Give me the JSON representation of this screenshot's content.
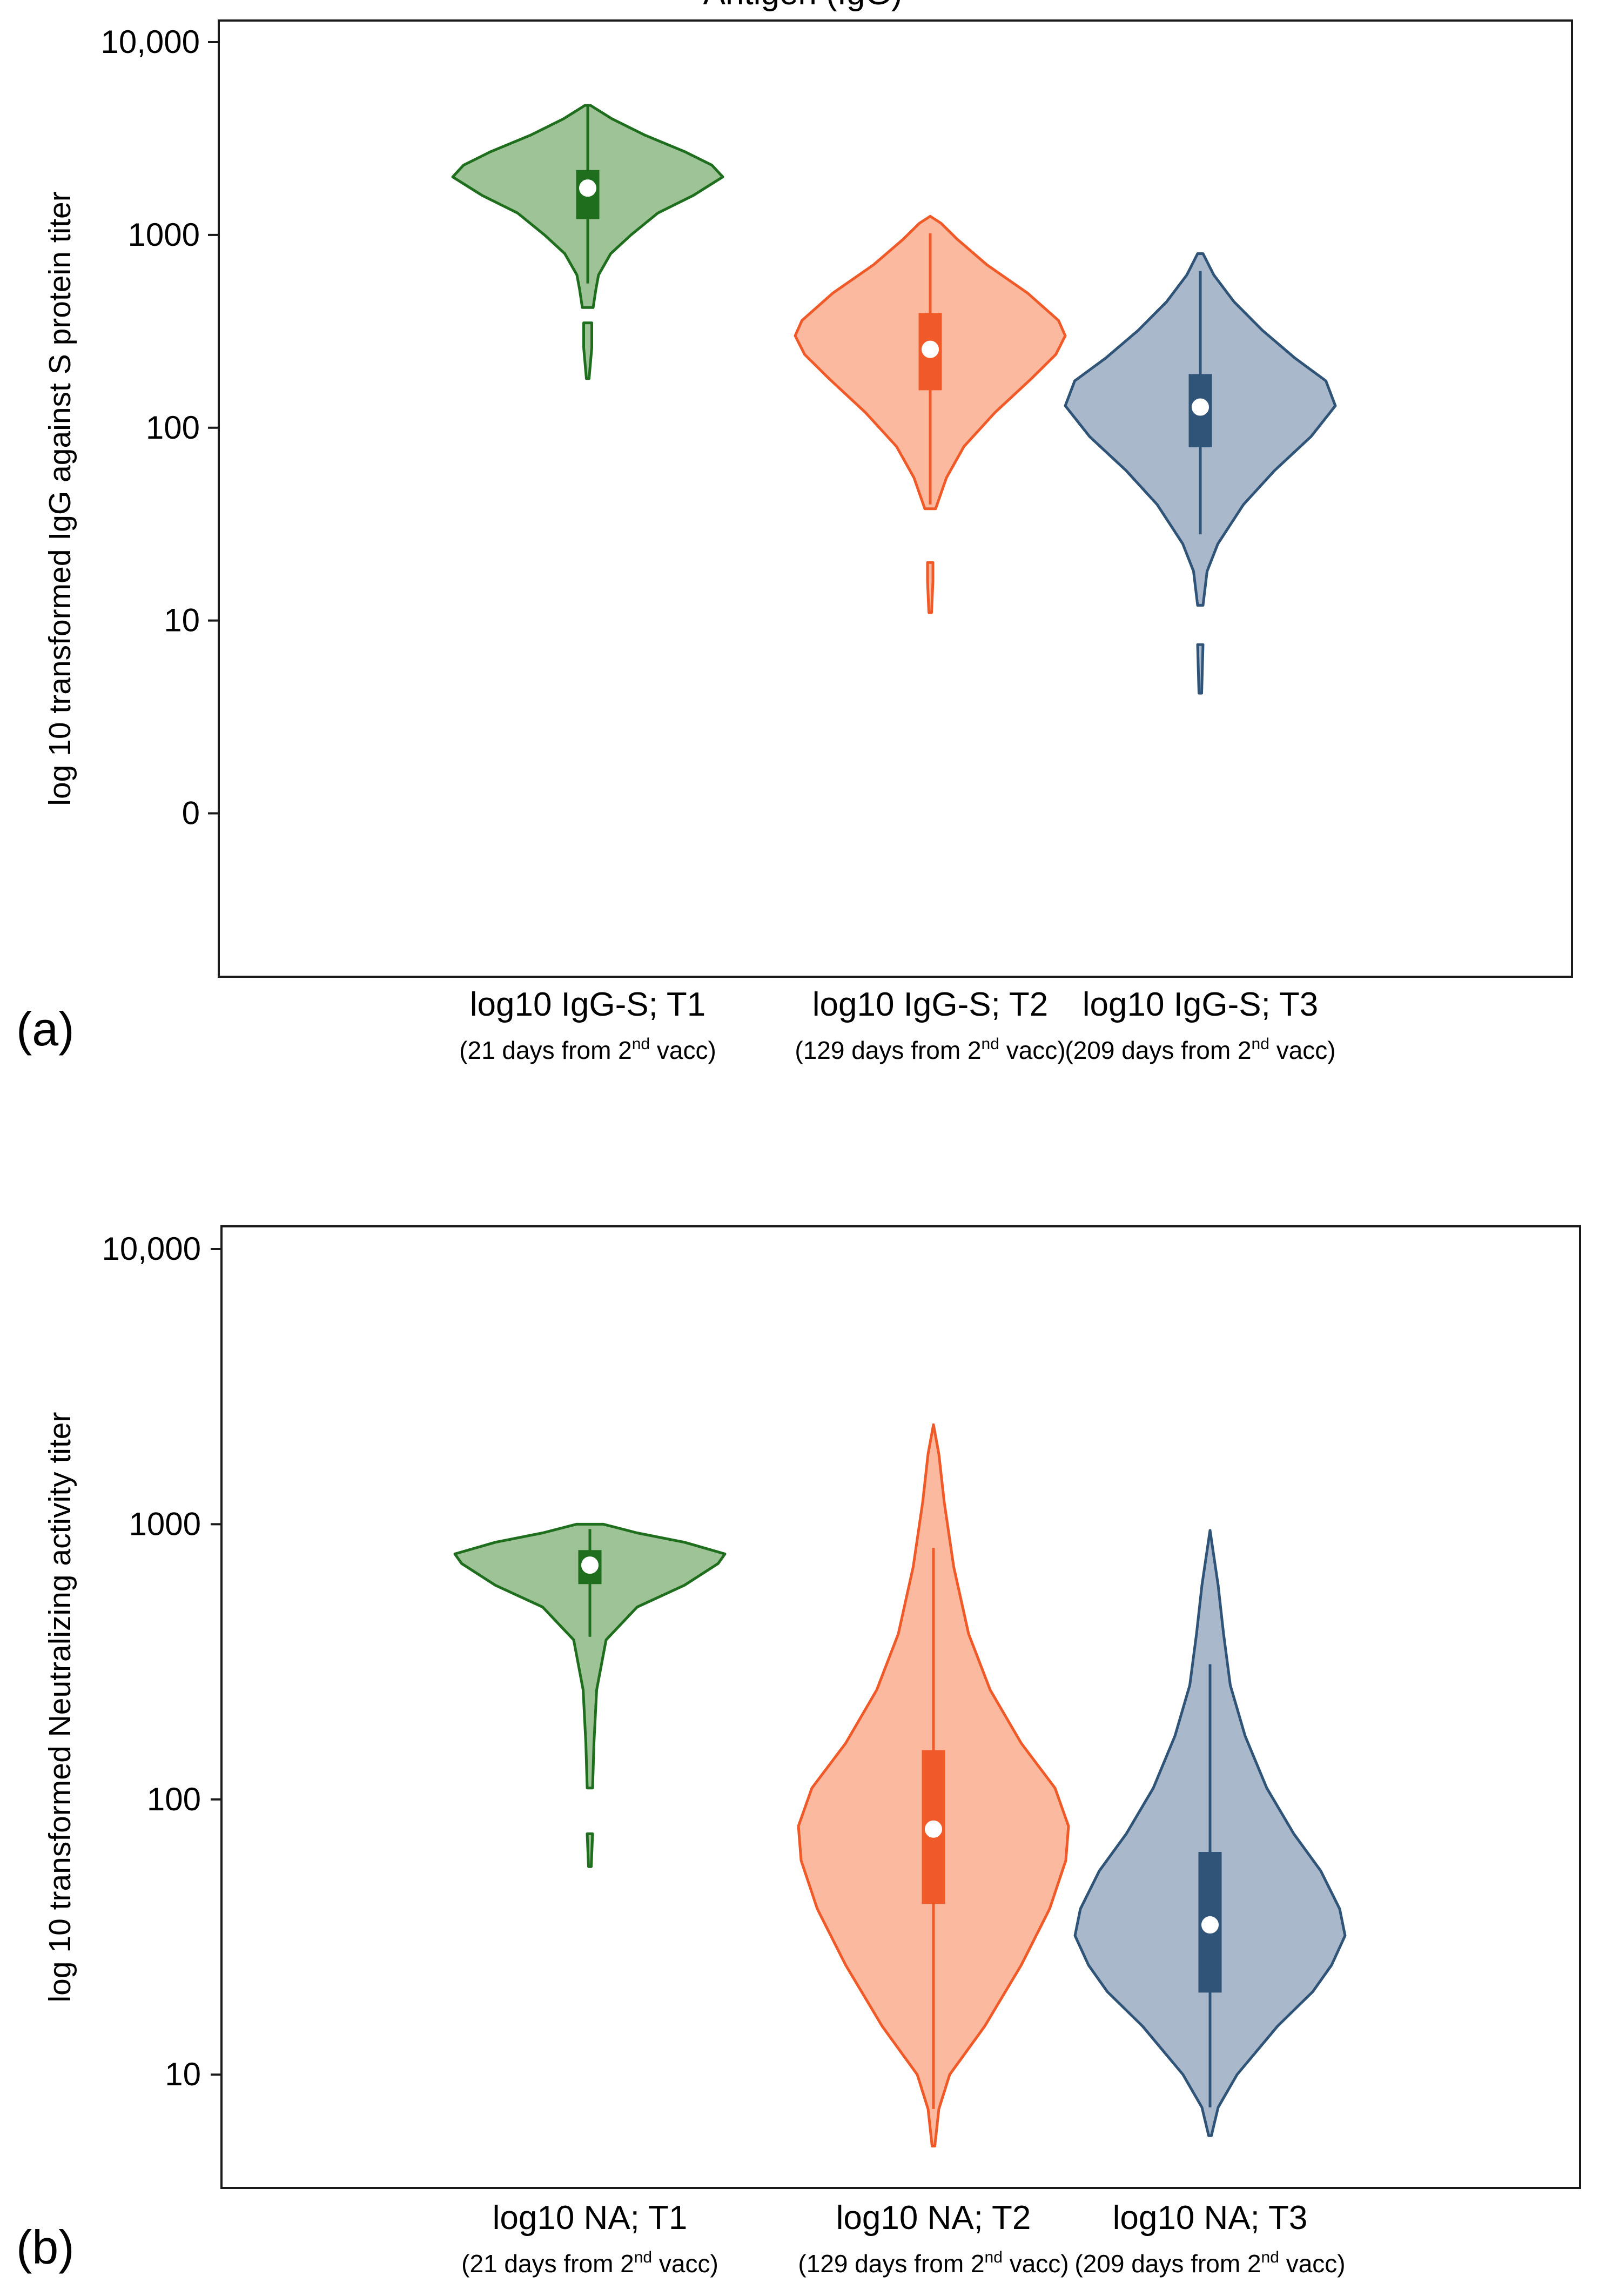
{
  "figure": {
    "top_title": "Antigen (IgG)",
    "panels": [
      {
        "label": "(a)",
        "chart_data": {
          "type": "violin",
          "ylabel": "log 10 transformed IgG against S protein titer",
          "yscale": "log",
          "ylim": [
            0.2,
            10000
          ],
          "yticks": [
            {
              "value": 10000,
              "label": "10,000"
            },
            {
              "value": 1000,
              "label": "1000"
            },
            {
              "value": 100,
              "label": "100"
            },
            {
              "value": 10,
              "label": "10"
            },
            {
              "value": 1,
              "label": "0"
            }
          ],
          "series": [
            {
              "name": "log10 IgG-S; T1",
              "sub_label": "(21 days from 2nd vacc)",
              "fill_color": "#9dc396",
              "stroke_color": "#1e6e1e",
              "box_color": "#1e6e1e",
              "median": 1750,
              "q1": 1220,
              "q3": 2150,
              "whisker_low": 560,
              "whisker_high": 4700,
              "range_low": 180,
              "gap": [
                350,
                420
              ],
              "density": [
                [
                  180,
                  0.01
                ],
                [
                  260,
                  0.03
                ],
                [
                  350,
                  0.03
                ],
                [
                  420,
                  0.04
                ],
                [
                  520,
                  0.06
                ],
                [
                  620,
                  0.08
                ],
                [
                  800,
                  0.17
                ],
                [
                  1000,
                  0.32
                ],
                [
                  1300,
                  0.52
                ],
                [
                  1600,
                  0.78
                ],
                [
                  2000,
                  1.0
                ],
                [
                  2300,
                  0.92
                ],
                [
                  2700,
                  0.72
                ],
                [
                  3300,
                  0.42
                ],
                [
                  4000,
                  0.18
                ],
                [
                  4700,
                  0.02
                ]
              ]
            },
            {
              "name": "log10 IgG-S; T2",
              "sub_label": "(129 days from 2nd vacc)",
              "fill_color": "#fbb9a0",
              "stroke_color": "#f05a28",
              "box_color": "#f05a28",
              "median": 255,
              "q1": 158,
              "q3": 390,
              "whisker_low": 40,
              "whisker_high": 1020,
              "range_low": 11,
              "gap": [
                20,
                38
              ],
              "density": [
                [
                  11,
                  0.01
                ],
                [
                  16,
                  0.02
                ],
                [
                  20,
                  0.02
                ],
                [
                  38,
                  0.04
                ],
                [
                  55,
                  0.12
                ],
                [
                  80,
                  0.25
                ],
                [
                  120,
                  0.48
                ],
                [
                  180,
                  0.75
                ],
                [
                  240,
                  0.93
                ],
                [
                  300,
                  1.0
                ],
                [
                  360,
                  0.95
                ],
                [
                  500,
                  0.72
                ],
                [
                  700,
                  0.42
                ],
                [
                  950,
                  0.2
                ],
                [
                  1150,
                  0.08
                ],
                [
                  1250,
                  0.0
                ]
              ]
            },
            {
              "name": "log10 IgG-S; T3",
              "sub_label": "(209 days from 2nd vacc)",
              "fill_color": "#a9b9cb",
              "stroke_color": "#2f5478",
              "box_color": "#2f5478",
              "median": 128,
              "q1": 80,
              "q3": 188,
              "whisker_low": 28,
              "whisker_high": 650,
              "range_low": 4.2,
              "gap": [
                7.5,
                12
              ],
              "density": [
                [
                  4.2,
                  0.01
                ],
                [
                  7.5,
                  0.02
                ],
                [
                  12,
                  0.02
                ],
                [
                  18,
                  0.05
                ],
                [
                  25,
                  0.13
                ],
                [
                  40,
                  0.32
                ],
                [
                  60,
                  0.55
                ],
                [
                  90,
                  0.82
                ],
                [
                  130,
                  1.0
                ],
                [
                  175,
                  0.93
                ],
                [
                  230,
                  0.7
                ],
                [
                  320,
                  0.46
                ],
                [
                  450,
                  0.25
                ],
                [
                  620,
                  0.1
                ],
                [
                  800,
                  0.02
                ]
              ]
            }
          ]
        }
      },
      {
        "label": "(b)",
        "chart_data": {
          "type": "violin",
          "ylabel": "log 10 transformed Neutralizing activity titer",
          "yscale": "log",
          "ylim": [
            4.6,
            10000
          ],
          "yticks": [
            {
              "value": 10000,
              "label": "10,000"
            },
            {
              "value": 1000,
              "label": "1000"
            },
            {
              "value": 100,
              "label": "100"
            },
            {
              "value": 10,
              "label": "10"
            }
          ],
          "series": [
            {
              "name": "log10 NA; T1",
              "sub_label": "(21 days from 2nd vacc)",
              "fill_color": "#9dc396",
              "stroke_color": "#1e6e1e",
              "box_color": "#1e6e1e",
              "median": 710,
              "q1": 610,
              "q3": 800,
              "whisker_low": 390,
              "whisker_high": 960,
              "range_low": 57,
              "gap": [
                75,
                110
              ],
              "density": [
                [
                  57,
                  0.01
                ],
                [
                  75,
                  0.02
                ],
                [
                  110,
                  0.02
                ],
                [
                  160,
                  0.03
                ],
                [
                  250,
                  0.05
                ],
                [
                  380,
                  0.12
                ],
                [
                  500,
                  0.35
                ],
                [
                  600,
                  0.7
                ],
                [
                  720,
                  0.95
                ],
                [
                  780,
                  1.0
                ],
                [
                  860,
                  0.7
                ],
                [
                  930,
                  0.35
                ],
                [
                  1000,
                  0.1
                ]
              ]
            },
            {
              "name": "log10 NA; T2",
              "sub_label": "(129 days from 2nd vacc)",
              "fill_color": "#fbb9a0",
              "stroke_color": "#f05a28",
              "box_color": "#f05a28",
              "median": 78,
              "q1": 42,
              "q3": 150,
              "whisker_low": 7.5,
              "whisker_high": 820,
              "range_low": 5.5,
              "density": [
                [
                  5.5,
                  0.01
                ],
                [
                  7.5,
                  0.04
                ],
                [
                  10,
                  0.12
                ],
                [
                  15,
                  0.38
                ],
                [
                  25,
                  0.65
                ],
                [
                  40,
                  0.86
                ],
                [
                  60,
                  0.98
                ],
                [
                  80,
                  1.0
                ],
                [
                  110,
                  0.9
                ],
                [
                  160,
                  0.65
                ],
                [
                  250,
                  0.42
                ],
                [
                  400,
                  0.26
                ],
                [
                  700,
                  0.15
                ],
                [
                  1200,
                  0.08
                ],
                [
                  1800,
                  0.04
                ],
                [
                  2300,
                  0.0
                ]
              ]
            },
            {
              "name": "log10 NA; T3",
              "sub_label": "(209 days from 2nd vacc)",
              "fill_color": "#a9b9cb",
              "stroke_color": "#2f5478",
              "box_color": "#2f5478",
              "median": 35,
              "q1": 20,
              "q3": 64,
              "whisker_low": 7.6,
              "whisker_high": 310,
              "range_low": 6,
              "density": [
                [
                  6,
                  0.01
                ],
                [
                  7.6,
                  0.06
                ],
                [
                  10,
                  0.2
                ],
                [
                  15,
                  0.5
                ],
                [
                  20,
                  0.76
                ],
                [
                  25,
                  0.9
                ],
                [
                  32,
                  1.0
                ],
                [
                  40,
                  0.96
                ],
                [
                  55,
                  0.82
                ],
                [
                  75,
                  0.62
                ],
                [
                  110,
                  0.42
                ],
                [
                  170,
                  0.26
                ],
                [
                  260,
                  0.15
                ],
                [
                  400,
                  0.1
                ],
                [
                  600,
                  0.06
                ],
                [
                  950,
                  0.0
                ]
              ]
            }
          ]
        }
      }
    ]
  }
}
